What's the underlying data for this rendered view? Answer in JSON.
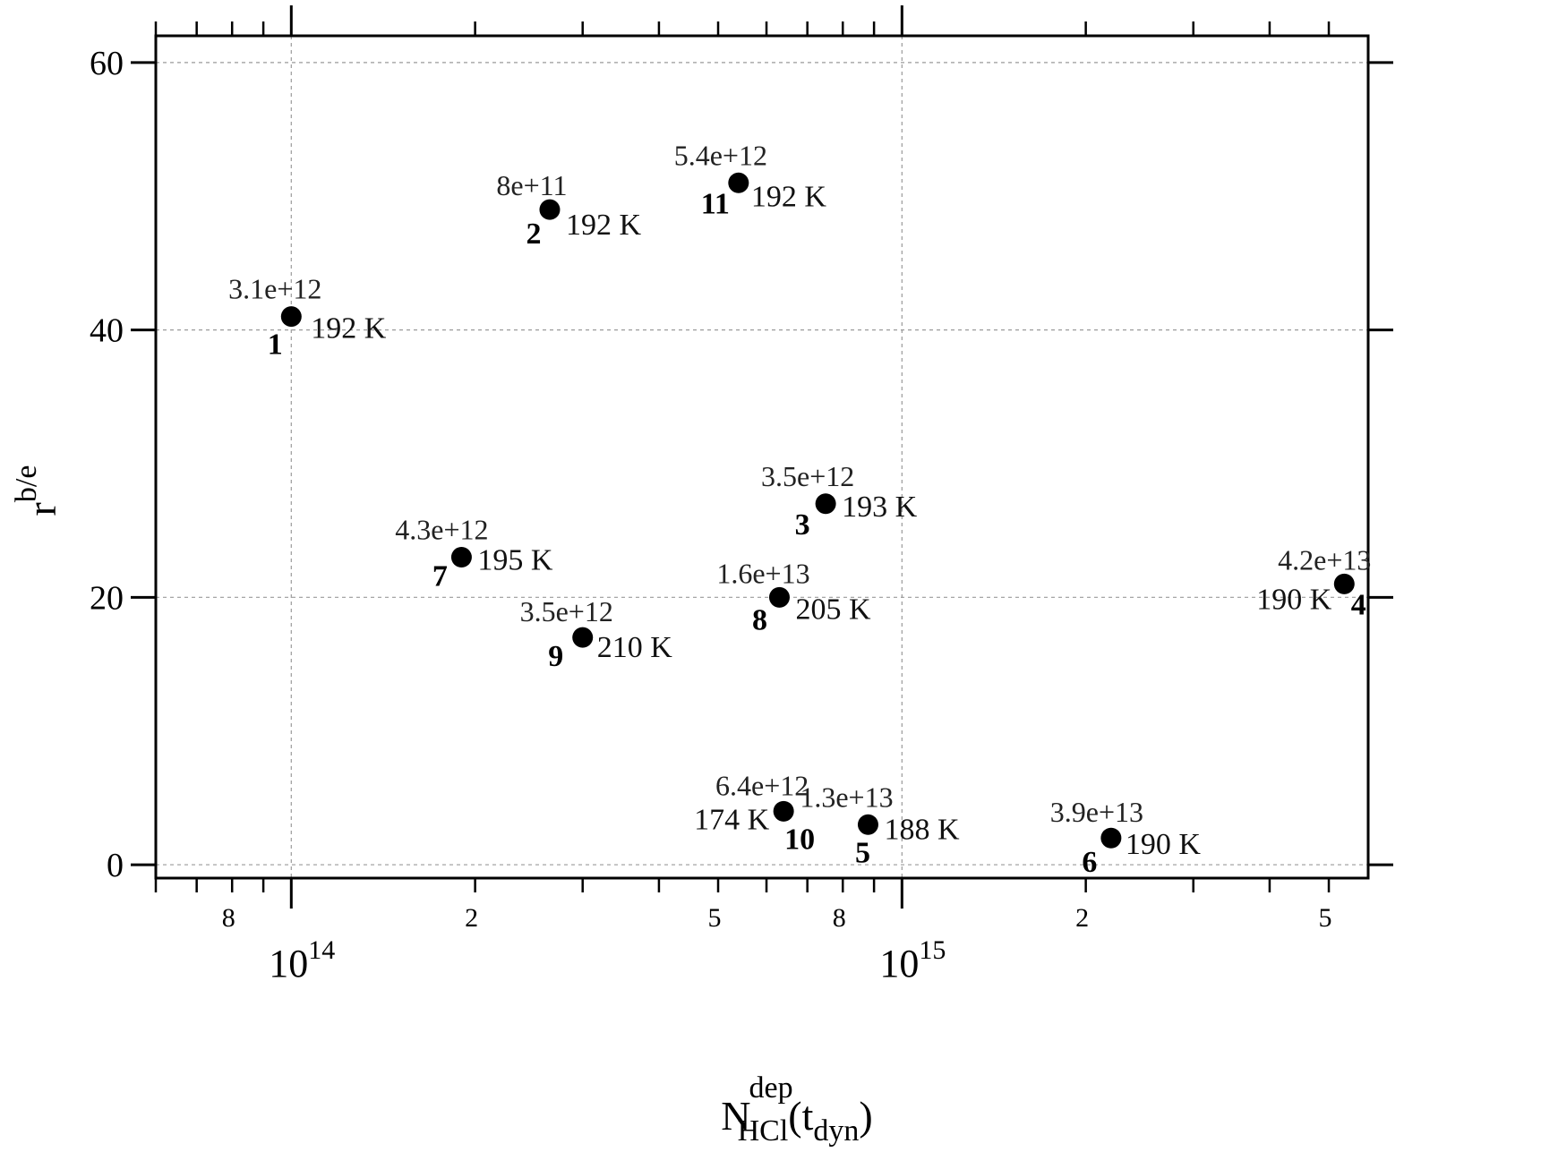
{
  "chart_data": {
    "type": "scatter",
    "xscale": "log",
    "xlim": [
      60000000000000,
      5800000000000000
    ],
    "ylim": [
      -1,
      62
    ],
    "grid": true,
    "xlabel": {
      "base": "N",
      "sup": "dep",
      "sub": "HCl",
      "tail_open": "(t",
      "tail_sub": "dyn",
      "tail_close": ")"
    },
    "ylabel": {
      "base": "r",
      "sup": "b/e"
    },
    "yticks": [
      {
        "value": 0,
        "label": "0"
      },
      {
        "value": 20,
        "label": "20"
      },
      {
        "value": 40,
        "label": "40"
      },
      {
        "value": 60,
        "label": "60"
      }
    ],
    "x_decade_ticks": [
      {
        "value": 100000000000000,
        "base": "10",
        "exp": "14"
      },
      {
        "value": 1000000000000000,
        "base": "10",
        "exp": "15"
      }
    ],
    "x_minor_labels": [
      {
        "value": 80000000000000,
        "label": "8"
      },
      {
        "value": 200000000000000,
        "label": "2"
      },
      {
        "value": 500000000000000,
        "label": "5"
      },
      {
        "value": 800000000000000,
        "label": "8"
      },
      {
        "value": 2000000000000000,
        "label": "2"
      },
      {
        "value": 5000000000000000,
        "label": "5"
      }
    ],
    "points": [
      {
        "id": "1",
        "x": 100000000000000,
        "y": 41,
        "value": "3.1e+12",
        "temp": "192 K"
      },
      {
        "id": "2",
        "x": 265000000000000,
        "y": 49,
        "value": "8e+11",
        "temp": "192 K"
      },
      {
        "id": "3",
        "x": 750000000000000,
        "y": 27,
        "value": "3.5e+12",
        "temp": "193 K"
      },
      {
        "id": "4",
        "x": 5300000000000000,
        "y": 21,
        "value": "4.2e+13",
        "temp": "190 K"
      },
      {
        "id": "5",
        "x": 880000000000000,
        "y": 3,
        "value": "1.3e+13",
        "temp": "188 K"
      },
      {
        "id": "6",
        "x": 2200000000000000,
        "y": 2,
        "value": "3.9e+13",
        "temp": "190 K"
      },
      {
        "id": "7",
        "x": 190000000000000,
        "y": 23,
        "value": "4.3e+12",
        "temp": "195 K"
      },
      {
        "id": "8",
        "x": 630000000000000,
        "y": 20,
        "value": "1.6e+13",
        "temp": "205 K"
      },
      {
        "id": "9",
        "x": 300000000000000,
        "y": 17,
        "value": "3.5e+12",
        "temp": "210 K"
      },
      {
        "id": "10",
        "x": 640000000000000,
        "y": 4,
        "value": "6.4e+12",
        "temp": "174 K"
      },
      {
        "id": "11",
        "x": 540000000000000,
        "y": 51,
        "value": "5.4e+12",
        "temp": "192 K"
      }
    ]
  }
}
